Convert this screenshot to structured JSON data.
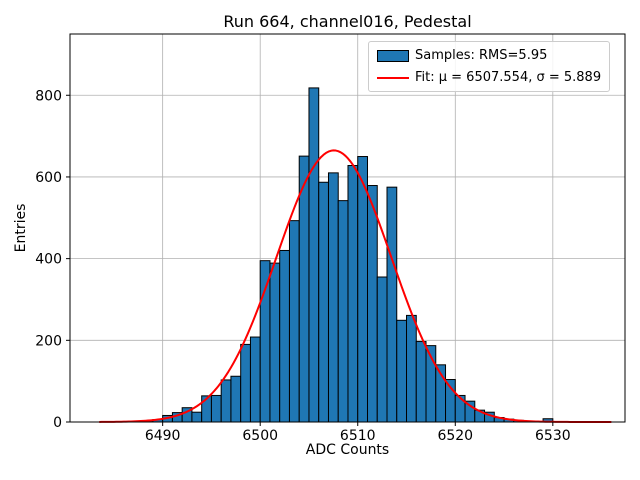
{
  "title": "Run 664, channel016, Pedestal",
  "axes": {
    "xlabel": "ADC Counts",
    "ylabel": "Entries",
    "xticks": [
      6490,
      6500,
      6510,
      6520,
      6530
    ],
    "yticks": [
      0,
      200,
      400,
      600,
      800
    ]
  },
  "legend": {
    "samples_label": "Samples: RMS=5.95",
    "fit_label": "Fit: μ = 6507.554, σ = 5.889"
  },
  "colors": {
    "bar_fill": "#1f77b4",
    "bar_edge": "#000000",
    "fit_line": "#ff0000",
    "grid": "#b0b0b0",
    "frame": "#000000"
  },
  "chart_data": {
    "type": "bar",
    "title": "Run 664, channel016, Pedestal",
    "xlabel": "ADC Counts",
    "ylabel": "Entries",
    "xlim": [
      6480.5,
      6537.4
    ],
    "ylim": [
      0,
      950
    ],
    "grid": true,
    "legend_position": "upper right",
    "bin_width": 1,
    "bin_left_edges": [
      6484,
      6485,
      6486,
      6487,
      6488,
      6489,
      6490,
      6491,
      6492,
      6493,
      6494,
      6495,
      6496,
      6497,
      6498,
      6499,
      6500,
      6501,
      6502,
      6503,
      6504,
      6505,
      6506,
      6507,
      6508,
      6509,
      6510,
      6511,
      6512,
      6513,
      6514,
      6515,
      6516,
      6517,
      6518,
      6519,
      6520,
      6521,
      6522,
      6523,
      6524,
      6525,
      6526,
      6527,
      6528,
      6529
    ],
    "counts": [
      0,
      0,
      1,
      1,
      3,
      6,
      16,
      23,
      35,
      24,
      64,
      65,
      103,
      112,
      190,
      208,
      395,
      389,
      420,
      493,
      651,
      818,
      587,
      610,
      542,
      628,
      650,
      579,
      355,
      575,
      249,
      261,
      197,
      187,
      140,
      104,
      65,
      51,
      29,
      24,
      11,
      7,
      4,
      2,
      1,
      8
    ],
    "stats": {
      "rms": 5.95
    },
    "fit": {
      "type": "gaussian",
      "mu": 6507.554,
      "sigma": 5.889,
      "amplitude": 665,
      "x_range": [
        6483.5,
        6536.0
      ]
    }
  }
}
